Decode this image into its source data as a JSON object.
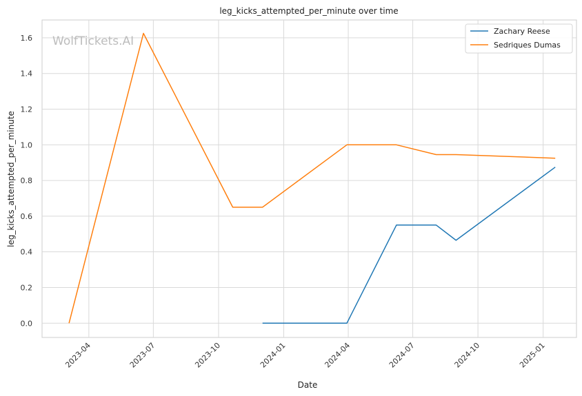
{
  "watermark": "WolfTickets.AI",
  "chart_data": {
    "type": "line",
    "title": "leg_kicks_attempted_per_minute over time",
    "xlabel": "Date",
    "ylabel": "leg_kicks_attempted_per_minute",
    "x_ticks": [
      "2023-04",
      "2023-07",
      "2023-10",
      "2024-01",
      "2024-04",
      "2024-07",
      "2024-10",
      "2025-01"
    ],
    "xlim": [
      "2023-01-25",
      "2025-02-17"
    ],
    "y_ticks": [
      0.0,
      0.2,
      0.4,
      0.6,
      0.8,
      1.0,
      1.2,
      1.4,
      1.6
    ],
    "ylim": [
      -0.08,
      1.7
    ],
    "grid": true,
    "legend_position": "top-right",
    "series": [
      {
        "name": "Zachary Reese",
        "color": "#1f77b4",
        "points": [
          {
            "x": "2023-12-02",
            "y": 0.0
          },
          {
            "x": "2024-03-30",
            "y": 0.0
          },
          {
            "x": "2024-06-08",
            "y": 0.55
          },
          {
            "x": "2024-08-03",
            "y": 0.55
          },
          {
            "x": "2024-08-31",
            "y": 0.465
          },
          {
            "x": "2025-01-18",
            "y": 0.875
          }
        ]
      },
      {
        "name": "Sedriques Dumas",
        "color": "#ff7f0e",
        "points": [
          {
            "x": "2023-03-04",
            "y": 0.0
          },
          {
            "x": "2023-06-17",
            "y": 1.625
          },
          {
            "x": "2023-10-21",
            "y": 0.65
          },
          {
            "x": "2023-12-02",
            "y": 0.65
          },
          {
            "x": "2024-03-30",
            "y": 1.0
          },
          {
            "x": "2024-06-08",
            "y": 1.0
          },
          {
            "x": "2024-08-03",
            "y": 0.945
          },
          {
            "x": "2024-08-31",
            "y": 0.945
          },
          {
            "x": "2025-01-18",
            "y": 0.925
          }
        ]
      }
    ]
  }
}
